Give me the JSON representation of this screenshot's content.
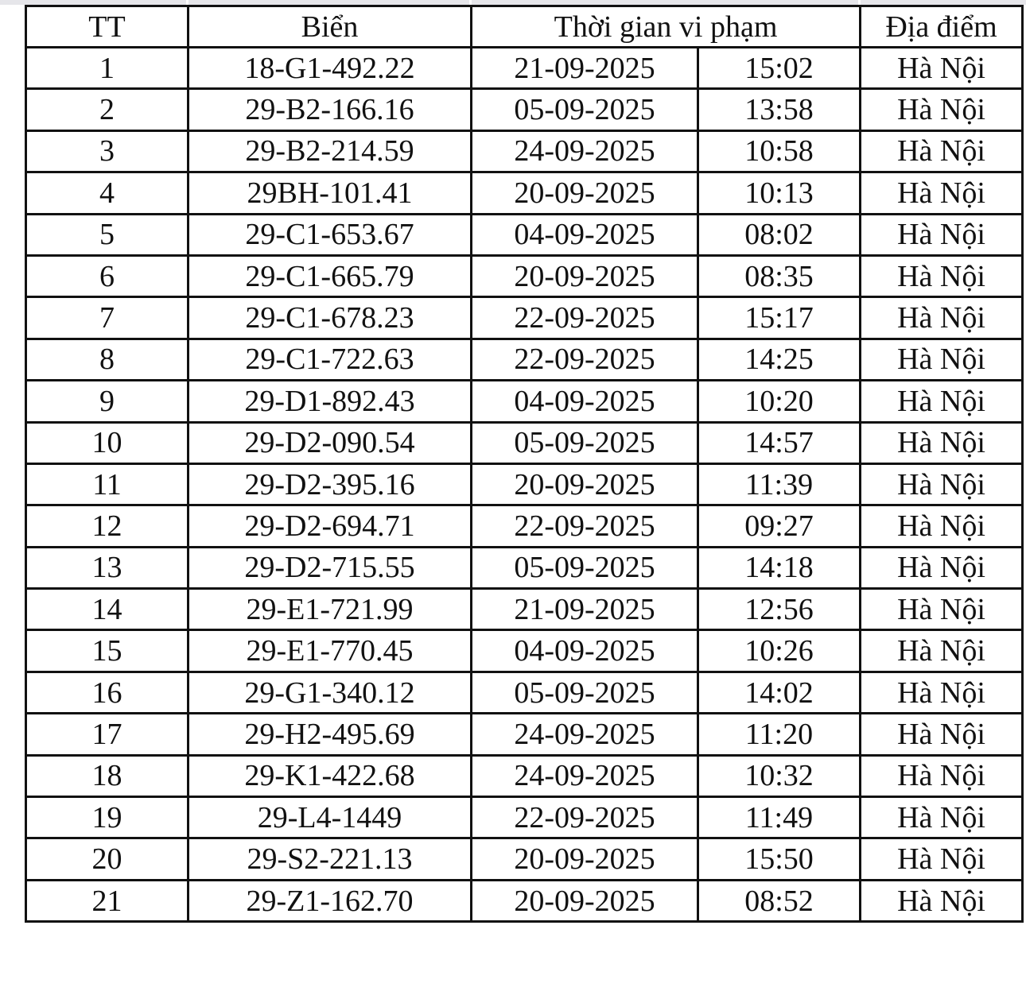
{
  "headers": {
    "tt": "TT",
    "plate": "Biển",
    "time": "Thời gian vi phạm",
    "location": "Địa điểm"
  },
  "rows": [
    {
      "tt": "1",
      "plate": "18-G1-492.22",
      "date": "21-09-2025",
      "time": "15:02",
      "location": "Hà Nội"
    },
    {
      "tt": "2",
      "plate": "29-B2-166.16",
      "date": "05-09-2025",
      "time": "13:58",
      "location": "Hà Nội"
    },
    {
      "tt": "3",
      "plate": "29-B2-214.59",
      "date": "24-09-2025",
      "time": "10:58",
      "location": "Hà Nội"
    },
    {
      "tt": "4",
      "plate": "29BH-101.41",
      "date": "20-09-2025",
      "time": "10:13",
      "location": "Hà Nội"
    },
    {
      "tt": "5",
      "plate": "29-C1-653.67",
      "date": "04-09-2025",
      "time": "08:02",
      "location": "Hà Nội"
    },
    {
      "tt": "6",
      "plate": "29-C1-665.79",
      "date": "20-09-2025",
      "time": "08:35",
      "location": "Hà Nội"
    },
    {
      "tt": "7",
      "plate": "29-C1-678.23",
      "date": "22-09-2025",
      "time": "15:17",
      "location": "Hà Nội"
    },
    {
      "tt": "8",
      "plate": "29-C1-722.63",
      "date": "22-09-2025",
      "time": "14:25",
      "location": "Hà Nội"
    },
    {
      "tt": "9",
      "plate": "29-D1-892.43",
      "date": "04-09-2025",
      "time": "10:20",
      "location": "Hà Nội"
    },
    {
      "tt": "10",
      "plate": "29-D2-090.54",
      "date": "05-09-2025",
      "time": "14:57",
      "location": "Hà Nội"
    },
    {
      "tt": "11",
      "plate": "29-D2-395.16",
      "date": "20-09-2025",
      "time": "11:39",
      "location": "Hà Nội"
    },
    {
      "tt": "12",
      "plate": "29-D2-694.71",
      "date": "22-09-2025",
      "time": "09:27",
      "location": "Hà Nội"
    },
    {
      "tt": "13",
      "plate": "29-D2-715.55",
      "date": "05-09-2025",
      "time": "14:18",
      "location": "Hà Nội"
    },
    {
      "tt": "14",
      "plate": "29-E1-721.99",
      "date": "21-09-2025",
      "time": "12:56",
      "location": "Hà Nội"
    },
    {
      "tt": "15",
      "plate": "29-E1-770.45",
      "date": "04-09-2025",
      "time": "10:26",
      "location": "Hà Nội"
    },
    {
      "tt": "16",
      "plate": "29-G1-340.12",
      "date": "05-09-2025",
      "time": "14:02",
      "location": "Hà Nội"
    },
    {
      "tt": "17",
      "plate": "29-H2-495.69",
      "date": "24-09-2025",
      "time": "11:20",
      "location": "Hà Nội"
    },
    {
      "tt": "18",
      "plate": "29-K1-422.68",
      "date": "24-09-2025",
      "time": "10:32",
      "location": "Hà Nội"
    },
    {
      "tt": "19",
      "plate": "29-L4-1449",
      "date": "22-09-2025",
      "time": "11:49",
      "location": "Hà Nội"
    },
    {
      "tt": "20",
      "plate": "29-S2-221.13",
      "date": "20-09-2025",
      "time": "15:50",
      "location": "Hà Nội"
    },
    {
      "tt": "21",
      "plate": "29-Z1-162.70",
      "date": "20-09-2025",
      "time": "08:52",
      "location": "Hà Nội"
    }
  ]
}
